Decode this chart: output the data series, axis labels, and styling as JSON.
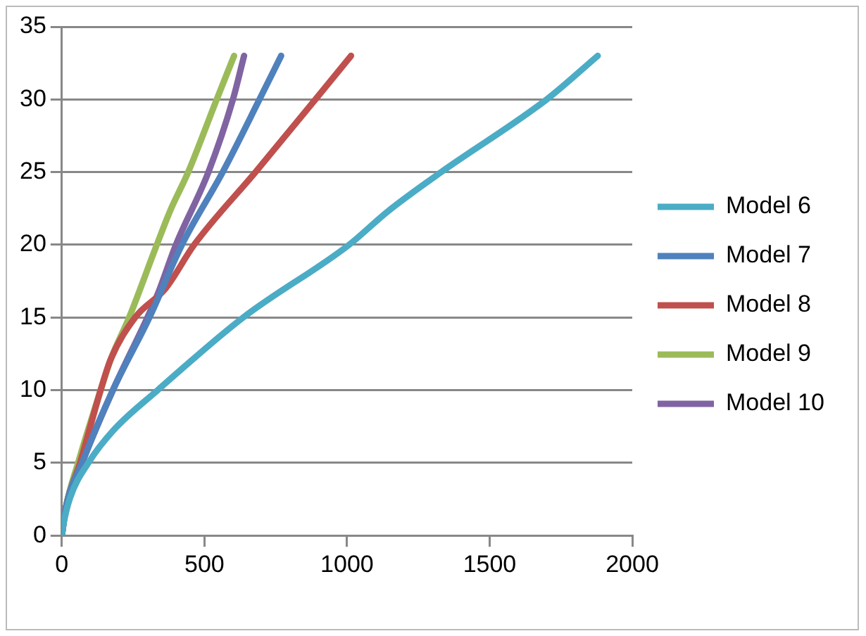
{
  "chart_data": {
    "type": "line",
    "xlim": [
      0,
      2000
    ],
    "xticks": [
      0,
      500,
      1000,
      1500,
      2000
    ],
    "ylim": [
      0,
      35
    ],
    "yticks": [
      0,
      5,
      10,
      15,
      20,
      25,
      30,
      35
    ],
    "grid": "y",
    "legend": "right",
    "marker": "none",
    "line_style": "solid",
    "series": [
      {
        "name": "Model 6",
        "color": "#4bacc6",
        "x": [
          0,
          7,
          29,
          93,
          179,
          336,
          636,
          1007,
          1143,
          1330,
          1700,
          1879
        ],
        "values": [
          0,
          0.9,
          2.6,
          5,
          7.2,
          10,
          15,
          20,
          22.3,
          25,
          30,
          33
        ]
      },
      {
        "name": "Model 7",
        "color": "#4f81bd",
        "x": [
          0,
          14,
          71,
          179,
          307,
          421,
          564,
          693,
          769
        ],
        "values": [
          0,
          1.9,
          5,
          10,
          15,
          20,
          25,
          30,
          33
        ]
      },
      {
        "name": "Model 8",
        "color": "#c0504d",
        "x": [
          0,
          14,
          64,
          136,
          171,
          257,
          364,
          464,
          679,
          889,
          1014
        ],
        "values": [
          0,
          1.9,
          5,
          10,
          12.1,
          15,
          17,
          20,
          25,
          30,
          33
        ]
      },
      {
        "name": "Model 9",
        "color": "#9bbb59",
        "x": [
          0,
          14,
          57,
          136,
          171,
          236,
          333,
          379,
          443,
          543,
          604
        ],
        "values": [
          0,
          1.9,
          5,
          10,
          12.1,
          15,
          20,
          22.3,
          25,
          30,
          33
        ]
      },
      {
        "name": "Model 10",
        "color": "#8064a2",
        "x": [
          0,
          14,
          71,
          179,
          300,
          336,
          400,
          514,
          600,
          639
        ],
        "values": [
          0,
          1.9,
          5,
          10,
          15,
          16.6,
          20,
          25,
          30,
          33
        ]
      }
    ]
  }
}
